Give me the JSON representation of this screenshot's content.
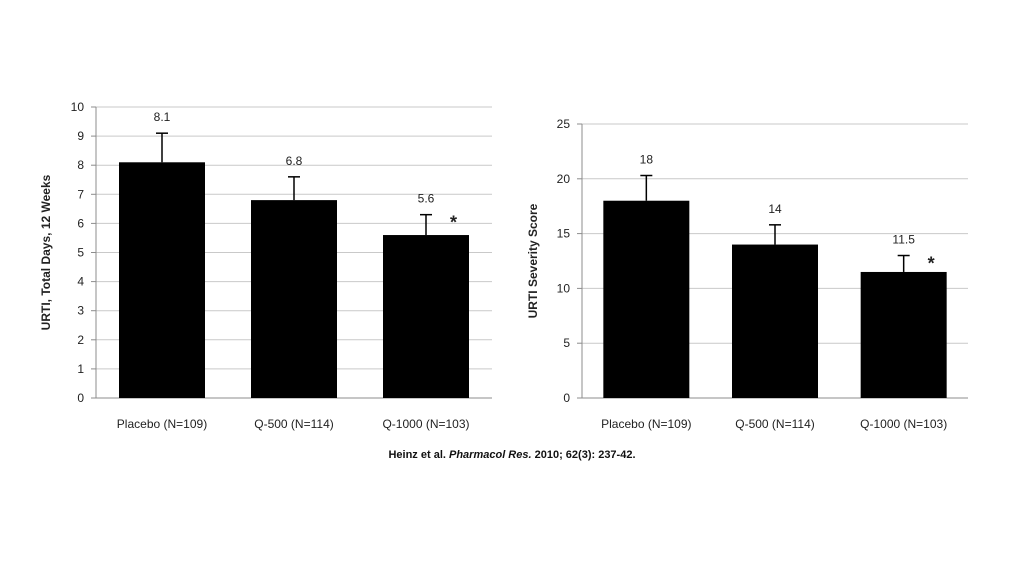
{
  "chart_data": [
    {
      "type": "bar",
      "categories": [
        "Placebo (N=109)",
        "Q-500 (N=114)",
        "Q-1000 (N=103)"
      ],
      "values": [
        8.1,
        6.8,
        5.6
      ],
      "error_upper": [
        9.1,
        7.6,
        6.3
      ],
      "data_labels": [
        "8.1",
        "6.8",
        "5.6"
      ],
      "significance_markers": [
        "",
        "",
        "*"
      ],
      "ylabel": "URTI, Total Days, 12 Weeks",
      "ylim": [
        0,
        10
      ],
      "yticks": [
        "0",
        "1",
        "2",
        "3",
        "4",
        "5",
        "6",
        "7",
        "8",
        "9",
        "10"
      ],
      "grid": true
    },
    {
      "type": "bar",
      "categories": [
        "Placebo (N=109)",
        "Q-500 (N=114)",
        "Q-1000 (N=103)"
      ],
      "values": [
        18,
        14,
        11.5
      ],
      "error_upper": [
        20.3,
        15.8,
        13.0
      ],
      "data_labels": [
        "18",
        "14",
        "11.5"
      ],
      "significance_markers": [
        "",
        "",
        "*"
      ],
      "ylabel": "URTI Severity Score",
      "ylim": [
        0,
        25
      ],
      "yticks": [
        "0",
        "5",
        "10",
        "15",
        "20",
        "25"
      ],
      "grid": true
    }
  ],
  "citation": {
    "authors": "Heinz et al.",
    "journal": "Pharmacol Res.",
    "details": "2010; 62(3): 237-42."
  }
}
